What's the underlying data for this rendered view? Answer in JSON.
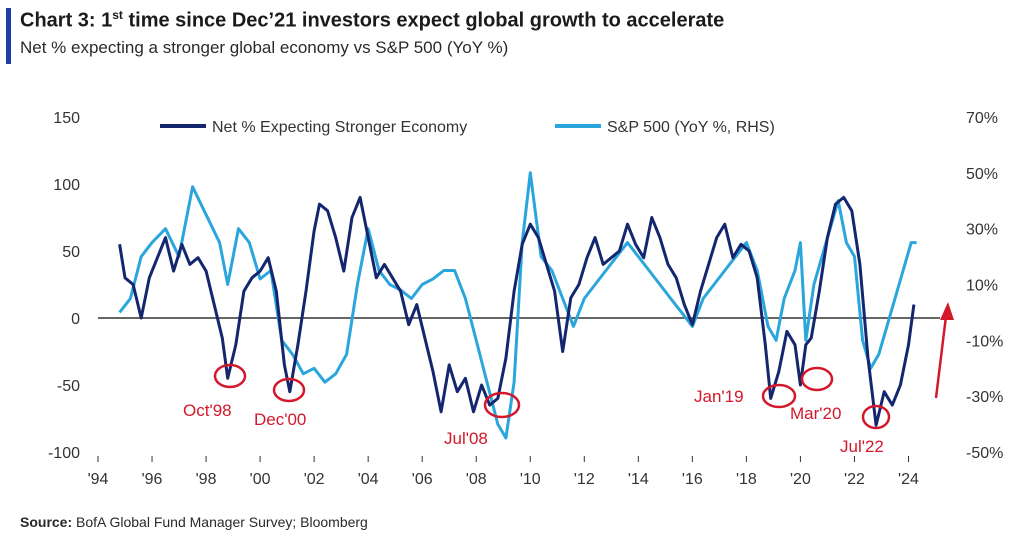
{
  "header": {
    "title_pre": "Chart 3: 1",
    "title_sup": "st",
    "title_post": " time since Dec’21 investors expect global growth to accelerate",
    "subtitle": "Net % expecting a stronger global economy vs S&P 500 (YoY %)"
  },
  "footer": {
    "source_label": "Source:",
    "source_text": " BofA Global Fund Manager Survey; Bloomberg"
  },
  "colors": {
    "net_series": "#14266e",
    "sp_series": "#2aa6dc",
    "annotation": "#d3182b",
    "axis": "#333333"
  },
  "chart_data": {
    "type": "line",
    "x_tick_labels": [
      "'94",
      "'96",
      "'98",
      "'00",
      "'02",
      "'04",
      "'06",
      "'08",
      "'10",
      "'12",
      "'14",
      "'16",
      "'18",
      "'20",
      "'22",
      "'24"
    ],
    "y_left_ticks": [
      "150",
      "100",
      "50",
      "0",
      "-50",
      "-100"
    ],
    "y_right_ticks": [
      "70%",
      "50%",
      "30%",
      "10%",
      "-10%",
      "-30%",
      "-50%"
    ],
    "ylim_left": [
      -100,
      150
    ],
    "ylim_right": [
      -50,
      70
    ],
    "xlim": [
      1994,
      2024.5
    ],
    "series": [
      {
        "name": "Net % Expecting Stronger Economy",
        "axis": "left",
        "x": [
          1994.8,
          1995.0,
          1995.3,
          1995.6,
          1995.9,
          1996.2,
          1996.5,
          1996.8,
          1997.1,
          1997.4,
          1997.7,
          1998.0,
          1998.3,
          1998.6,
          1998.8,
          1999.1,
          1999.4,
          1999.7,
          2000.0,
          2000.3,
          2000.6,
          2000.9,
          2001.1,
          2001.4,
          2001.7,
          2002.0,
          2002.2,
          2002.5,
          2002.8,
          2003.1,
          2003.4,
          2003.7,
          2004.0,
          2004.3,
          2004.6,
          2004.9,
          2005.2,
          2005.5,
          2005.8,
          2006.1,
          2006.4,
          2006.7,
          2007.0,
          2007.3,
          2007.6,
          2007.9,
          2008.2,
          2008.5,
          2008.8,
          2009.1,
          2009.4,
          2009.7,
          2010.0,
          2010.3,
          2010.6,
          2010.9,
          2011.2,
          2011.5,
          2011.8,
          2012.1,
          2012.4,
          2012.7,
          2013.0,
          2013.3,
          2013.6,
          2013.9,
          2014.2,
          2014.5,
          2014.8,
          2015.1,
          2015.4,
          2015.7,
          2016.0,
          2016.3,
          2016.6,
          2016.9,
          2017.2,
          2017.5,
          2017.8,
          2018.1,
          2018.4,
          2018.7,
          2018.9,
          2019.2,
          2019.5,
          2019.8,
          2020.0,
          2020.2,
          2020.4,
          2020.7,
          2021.0,
          2021.3,
          2021.6,
          2021.9,
          2022.2,
          2022.5,
          2022.8,
          2023.1,
          2023.4,
          2023.7,
          2024.0,
          2024.2
        ],
        "values": [
          55,
          30,
          25,
          0,
          30,
          45,
          60,
          35,
          55,
          40,
          45,
          35,
          10,
          -15,
          -45,
          -20,
          20,
          30,
          35,
          45,
          20,
          -35,
          -55,
          -20,
          20,
          65,
          85,
          80,
          60,
          35,
          75,
          90,
          60,
          30,
          40,
          30,
          20,
          -5,
          10,
          -15,
          -40,
          -70,
          -35,
          -55,
          -45,
          -70,
          -50,
          -65,
          -60,
          -30,
          20,
          55,
          70,
          60,
          40,
          20,
          -25,
          15,
          25,
          45,
          60,
          40,
          45,
          50,
          70,
          55,
          45,
          75,
          60,
          40,
          30,
          10,
          -5,
          20,
          40,
          60,
          70,
          45,
          55,
          50,
          30,
          -20,
          -60,
          -40,
          -10,
          -20,
          -50,
          -20,
          -15,
          20,
          60,
          85,
          90,
          80,
          40,
          -30,
          -80,
          -55,
          -65,
          -50,
          -20,
          10
        ]
      },
      {
        "name": "S&P 500 (YoY %, RHS)",
        "axis": "right",
        "x": [
          1994.8,
          1995.2,
          1995.6,
          1996.0,
          1996.5,
          1997.0,
          1997.5,
          1998.0,
          1998.5,
          1998.8,
          1999.2,
          1999.6,
          2000.0,
          2000.4,
          2000.8,
          2001.2,
          2001.6,
          2002.0,
          2002.4,
          2002.8,
          2003.2,
          2003.6,
          2004.0,
          2004.4,
          2004.8,
          2005.2,
          2005.6,
          2006.0,
          2006.4,
          2006.8,
          2007.2,
          2007.6,
          2008.0,
          2008.4,
          2008.8,
          2009.1,
          2009.4,
          2009.7,
          2010.0,
          2010.4,
          2010.8,
          2011.2,
          2011.6,
          2012.0,
          2012.4,
          2012.8,
          2013.2,
          2013.6,
          2014.0,
          2014.4,
          2014.8,
          2015.2,
          2015.6,
          2016.0,
          2016.4,
          2016.8,
          2017.2,
          2017.6,
          2018.0,
          2018.4,
          2018.8,
          2019.1,
          2019.4,
          2019.8,
          2020.0,
          2020.2,
          2020.5,
          2020.8,
          2021.1,
          2021.4,
          2021.7,
          2022.0,
          2022.3,
          2022.6,
          2022.9,
          2023.2,
          2023.5,
          2023.8,
          2024.1,
          2024.3
        ],
        "values": [
          0,
          5,
          20,
          25,
          30,
          20,
          45,
          35,
          25,
          10,
          30,
          25,
          12,
          15,
          -10,
          -15,
          -22,
          -20,
          -25,
          -22,
          -15,
          10,
          30,
          15,
          10,
          8,
          5,
          10,
          12,
          15,
          15,
          5,
          -10,
          -25,
          -40,
          -45,
          -25,
          25,
          50,
          20,
          15,
          5,
          -5,
          5,
          10,
          15,
          20,
          25,
          20,
          15,
          10,
          5,
          0,
          -5,
          5,
          10,
          15,
          20,
          25,
          15,
          -5,
          -10,
          5,
          15,
          25,
          -10,
          10,
          20,
          30,
          40,
          25,
          20,
          -10,
          -20,
          -15,
          -5,
          5,
          15,
          25,
          25
        ]
      }
    ],
    "annotations": [
      "Oct'98",
      "Dec'00",
      "Jul'08",
      "Jan'19",
      "Mar'20",
      "Jul'22"
    ],
    "grid": false,
    "legend": "top"
  }
}
